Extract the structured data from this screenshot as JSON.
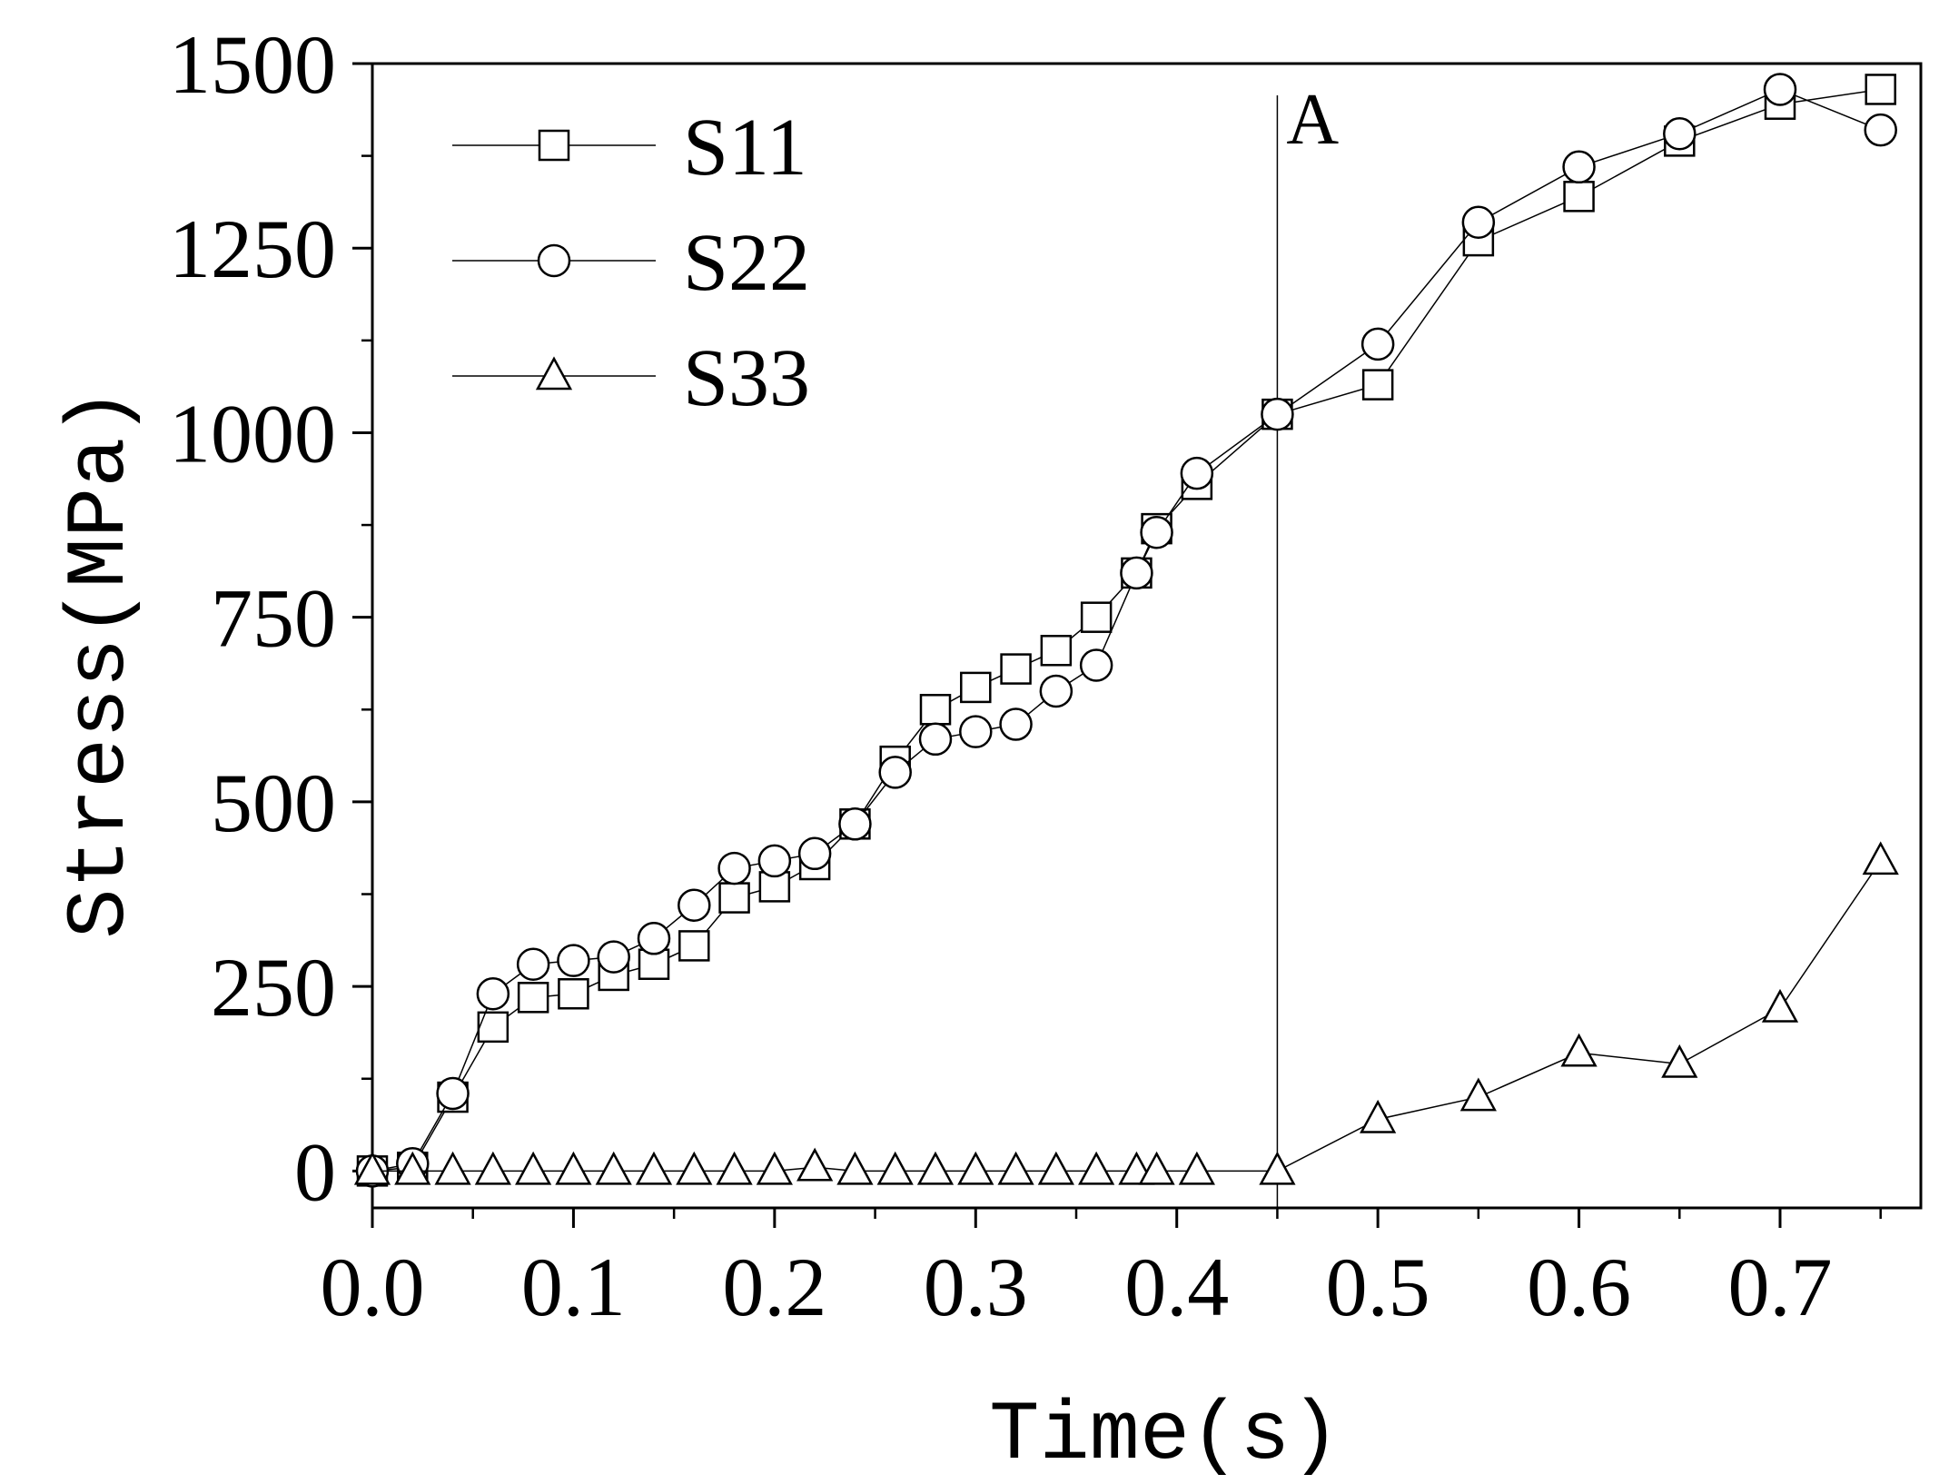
{
  "chart_data": {
    "type": "line",
    "title": "",
    "xlabel": "Time(s)",
    "ylabel": "Stress(MPa)",
    "xlim": [
      0.0,
      0.77
    ],
    "ylim": [
      -50,
      1500
    ],
    "x_ticks": [
      "0.0",
      "0.1",
      "0.2",
      "0.3",
      "0.4",
      "0.5",
      "0.6",
      "0.7"
    ],
    "y_ticks": [
      "0",
      "250",
      "500",
      "750",
      "1000",
      "1250",
      "1500"
    ],
    "legend_position": "top-left",
    "annotation": {
      "label": "A",
      "x": 0.45
    },
    "series": [
      {
        "name": "S11",
        "marker": "square",
        "x": [
          0.0,
          0.02,
          0.04,
          0.06,
          0.08,
          0.1,
          0.12,
          0.14,
          0.16,
          0.18,
          0.2,
          0.22,
          0.24,
          0.26,
          0.28,
          0.3,
          0.32,
          0.34,
          0.36,
          0.38,
          0.39,
          0.41,
          0.45,
          0.5,
          0.55,
          0.6,
          0.65,
          0.7,
          0.75
        ],
        "values": [
          0,
          5,
          100,
          195,
          235,
          240,
          265,
          280,
          305,
          370,
          385,
          415,
          470,
          555,
          625,
          655,
          680,
          705,
          750,
          810,
          870,
          930,
          1025,
          1065,
          1260,
          1320,
          1395,
          1445,
          1465
        ]
      },
      {
        "name": "S22",
        "marker": "circle",
        "x": [
          0.0,
          0.02,
          0.04,
          0.06,
          0.08,
          0.1,
          0.12,
          0.14,
          0.16,
          0.18,
          0.2,
          0.22,
          0.24,
          0.26,
          0.28,
          0.3,
          0.32,
          0.34,
          0.36,
          0.38,
          0.39,
          0.41,
          0.45,
          0.5,
          0.55,
          0.6,
          0.65,
          0.7,
          0.75
        ],
        "values": [
          0,
          10,
          105,
          240,
          280,
          285,
          290,
          315,
          360,
          410,
          420,
          430,
          470,
          540,
          585,
          595,
          605,
          650,
          685,
          810,
          865,
          945,
          1025,
          1120,
          1285,
          1360,
          1405,
          1465,
          1410
        ]
      },
      {
        "name": "S33",
        "marker": "triangle",
        "x": [
          0.0,
          0.02,
          0.04,
          0.06,
          0.08,
          0.1,
          0.12,
          0.14,
          0.16,
          0.18,
          0.2,
          0.22,
          0.24,
          0.26,
          0.28,
          0.3,
          0.32,
          0.34,
          0.36,
          0.38,
          0.39,
          0.41,
          0.45,
          0.5,
          0.55,
          0.6,
          0.65,
          0.7,
          0.75
        ],
        "values": [
          0,
          0,
          0,
          0,
          0,
          0,
          0,
          0,
          0,
          0,
          0,
          5,
          0,
          0,
          0,
          0,
          0,
          0,
          0,
          0,
          0,
          0,
          0,
          70,
          100,
          160,
          145,
          220,
          420
        ]
      }
    ]
  }
}
